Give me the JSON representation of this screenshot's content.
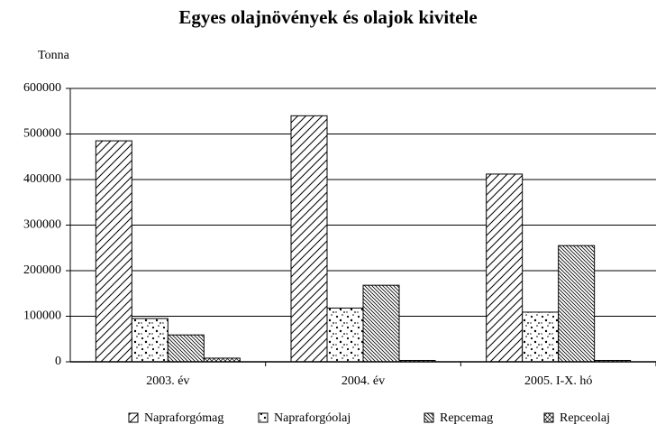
{
  "chart_data": {
    "type": "bar",
    "title": "Egyes olajnövények és olajok kivitele",
    "y_label": "Tonna",
    "categories": [
      "2003. év",
      "2004. év",
      "2005. I-X. hó"
    ],
    "series": [
      {
        "name": "Napraforgómag",
        "color": "#000000",
        "pattern": "diagonal",
        "values": [
          485000,
          540000,
          412000
        ]
      },
      {
        "name": "Napraforgóolaj",
        "color": "#000000",
        "pattern": "dots",
        "values": [
          95000,
          118000,
          109000
        ]
      },
      {
        "name": "Repcemag",
        "color": "#000000",
        "pattern": "backdiagonal",
        "values": [
          59000,
          168000,
          255000
        ]
      },
      {
        "name": "Repceolaj",
        "color": "#000000",
        "pattern": "cross",
        "values": [
          8000,
          3000,
          3000
        ]
      }
    ],
    "ylim": [
      0,
      600000
    ],
    "yticks": [
      0,
      100000,
      200000,
      300000,
      400000,
      500000,
      600000
    ],
    "grid": true,
    "legend": "bottom"
  }
}
